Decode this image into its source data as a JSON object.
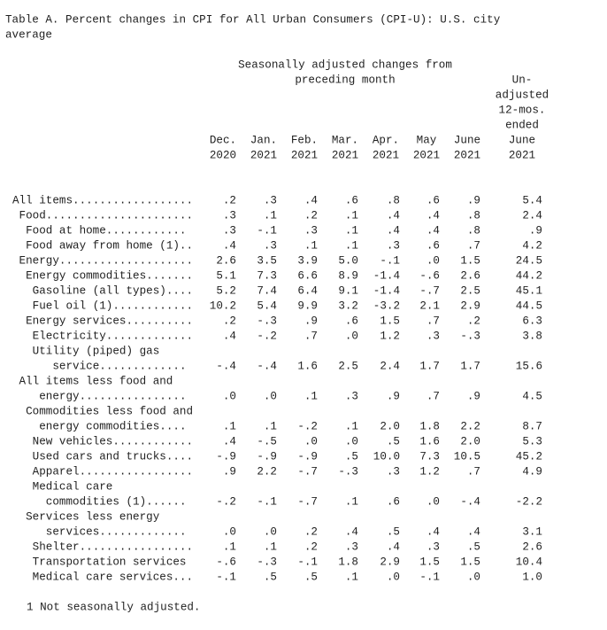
{
  "title": [
    "Table A. Percent changes in CPI for All Urban Consumers (CPI-U): U.S. city",
    "average"
  ],
  "group_header": [
    "Seasonally adjusted changes from",
    "preceding month"
  ],
  "columns": [
    [
      "Dec.",
      "2020"
    ],
    [
      "Jan.",
      "2021"
    ],
    [
      "Feb.",
      "2021"
    ],
    [
      "Mar.",
      "2021"
    ],
    [
      "Apr.",
      "2021"
    ],
    [
      "May",
      "2021"
    ],
    [
      "June",
      "2021"
    ],
    [
      "Un-",
      "adjusted",
      "12-mos.",
      "ended",
      "June",
      "2021"
    ]
  ],
  "rows": [
    {
      "label": [
        "All items.................."
      ],
      "values": [
        ".2",
        ".3",
        ".4",
        ".6",
        ".8",
        ".6",
        ".9",
        "5.4"
      ]
    },
    {
      "label": [
        "Food......................"
      ],
      "values": [
        ".3",
        ".1",
        ".2",
        ".1",
        ".4",
        ".4",
        ".8",
        "2.4"
      ]
    },
    {
      "label": [
        "Food at home............"
      ],
      "values": [
        ".3",
        "-.1",
        ".3",
        ".1",
        ".4",
        ".4",
        ".8",
        ".9"
      ]
    },
    {
      "label": [
        "Food away from home (1).."
      ],
      "values": [
        ".4",
        ".3",
        ".1",
        ".1",
        ".3",
        ".6",
        ".7",
        "4.2"
      ]
    },
    {
      "label": [
        "Energy...................."
      ],
      "values": [
        "2.6",
        "3.5",
        "3.9",
        "5.0",
        "-.1",
        ".0",
        "1.5",
        "24.5"
      ]
    },
    {
      "label": [
        "Energy commodities......."
      ],
      "values": [
        "5.1",
        "7.3",
        "6.6",
        "8.9",
        "-1.4",
        "-.6",
        "2.6",
        "44.2"
      ]
    },
    {
      "label": [
        "Gasoline (all types)...."
      ],
      "values": [
        "5.2",
        "7.4",
        "6.4",
        "9.1",
        "-1.4",
        "-.7",
        "2.5",
        "45.1"
      ]
    },
    {
      "label": [
        "Fuel oil (1)............"
      ],
      "values": [
        "10.2",
        "5.4",
        "9.9",
        "3.2",
        "-3.2",
        "2.1",
        "2.9",
        "44.5"
      ]
    },
    {
      "label": [
        "Energy services.........."
      ],
      "values": [
        ".2",
        "-.3",
        ".9",
        ".6",
        "1.5",
        ".7",
        ".2",
        "6.3"
      ]
    },
    {
      "label": [
        "Electricity............."
      ],
      "values": [
        ".4",
        "-.2",
        ".7",
        ".0",
        "1.2",
        ".3",
        "-.3",
        "3.8"
      ]
    },
    {
      "label": [
        "Utility (piped) gas",
        "service............."
      ],
      "values": [
        "-.4",
        "-.4",
        "1.6",
        "2.5",
        "2.4",
        "1.7",
        "1.7",
        "15.6"
      ]
    },
    {
      "label": [
        "All items less food and",
        "energy................"
      ],
      "values": [
        ".0",
        ".0",
        ".1",
        ".3",
        ".9",
        ".7",
        ".9",
        "4.5"
      ]
    },
    {
      "label": [
        "Commodities less food and",
        "energy commodities...."
      ],
      "values": [
        ".1",
        ".1",
        "-.2",
        ".1",
        "2.0",
        "1.8",
        "2.2",
        "8.7"
      ]
    },
    {
      "label": [
        "New vehicles............"
      ],
      "values": [
        ".4",
        "-.5",
        ".0",
        ".0",
        ".5",
        "1.6",
        "2.0",
        "5.3"
      ]
    },
    {
      "label": [
        "Used cars and trucks...."
      ],
      "values": [
        "-.9",
        "-.9",
        "-.9",
        ".5",
        "10.0",
        "7.3",
        "10.5",
        "45.2"
      ]
    },
    {
      "label": [
        "Apparel................."
      ],
      "values": [
        ".9",
        "2.2",
        "-.7",
        "-.3",
        ".3",
        "1.2",
        ".7",
        "4.9"
      ]
    },
    {
      "label": [
        "Medical care",
        "commodities (1)......"
      ],
      "values": [
        "-.2",
        "-.1",
        "-.7",
        ".1",
        ".6",
        ".0",
        "-.4",
        "-2.2"
      ]
    },
    {
      "label": [
        "Services less energy",
        "services............."
      ],
      "values": [
        ".0",
        ".0",
        ".2",
        ".4",
        ".5",
        ".4",
        ".4",
        "3.1"
      ]
    },
    {
      "label": [
        "Shelter................."
      ],
      "values": [
        ".1",
        ".1",
        ".2",
        ".3",
        ".4",
        ".3",
        ".5",
        "2.6"
      ]
    },
    {
      "label": [
        "Transportation services"
      ],
      "values": [
        "-.6",
        "-.3",
        "-.1",
        "1.8",
        "2.9",
        "1.5",
        "1.5",
        "10.4"
      ]
    },
    {
      "label": [
        "Medical care services..."
      ],
      "values": [
        "-.1",
        ".5",
        ".5",
        ".1",
        ".0",
        "-.1",
        ".0",
        "1.0"
      ]
    }
  ],
  "footnote": "1 Not seasonally adjusted."
}
